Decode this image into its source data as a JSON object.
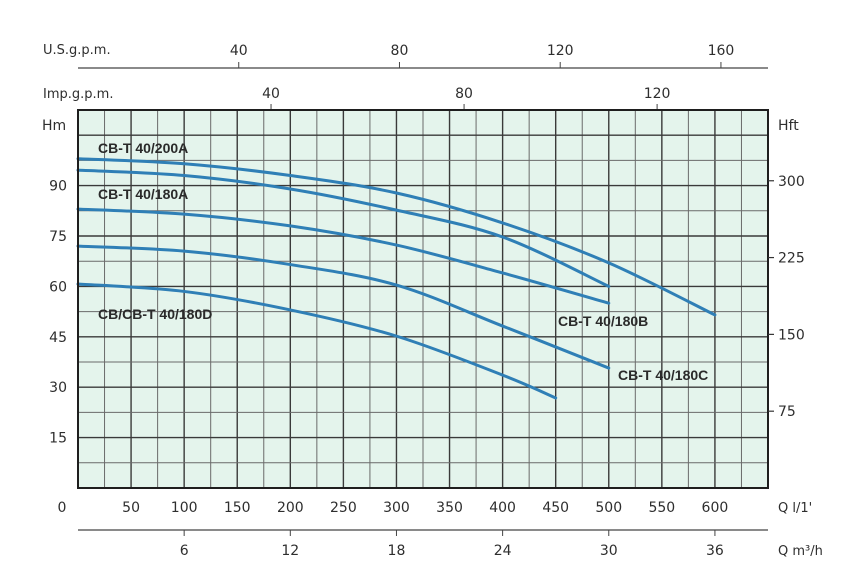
{
  "chart_data": {
    "type": "line",
    "title": "",
    "xlabel": "Q l/1'",
    "xlabel_secondary": "Q m³/h",
    "xlabel_top_1": "U.S.g.p.m.",
    "xlabel_top_2": "Imp.g.p.m.",
    "ylabel": "Hm",
    "ylabel_right": "Hft",
    "xlim": [
      0,
      650
    ],
    "ylim": [
      0,
      112.5
    ],
    "grid": true,
    "background": "#e4f4ec",
    "line_color": "#2f7fb6",
    "x_ticks": [
      0,
      50,
      100,
      150,
      200,
      250,
      300,
      350,
      400,
      450,
      500,
      550,
      600
    ],
    "x_tick_labels": [
      "0",
      "50",
      "100",
      "150",
      "200",
      "250",
      "300",
      "350",
      "400",
      "450",
      "500",
      "550",
      "600"
    ],
    "x2_ticks_m3h": [
      6,
      12,
      18,
      24,
      30,
      36
    ],
    "x_top_usgpm_ticks": [
      40,
      80,
      120,
      160
    ],
    "x_top_impgpm_ticks": [
      40,
      80,
      120
    ],
    "y_ticks": [
      15,
      30,
      45,
      60,
      75,
      90
    ],
    "y_right_ticks_ft": [
      75,
      150,
      225,
      300
    ],
    "series": [
      {
        "name": "CB-T 40/200A",
        "x": [
          0,
          100,
          200,
          300,
          400,
          500,
          600
        ],
        "values": [
          98,
          96.5,
          93,
          87.8,
          78.9,
          67,
          51.5
        ]
      },
      {
        "name": "CB-T 40/180A",
        "x": [
          0,
          100,
          200,
          300,
          400,
          500
        ],
        "values": [
          94.6,
          93,
          89,
          82.7,
          74.7,
          60
        ]
      },
      {
        "name": "CB-T 40/180B",
        "x": [
          0,
          100,
          200,
          300,
          400,
          500
        ],
        "values": [
          83,
          81.5,
          78,
          72.3,
          64,
          55
        ]
      },
      {
        "name": "CB-T 40/180C",
        "x": [
          0,
          100,
          200,
          300,
          400,
          500
        ],
        "values": [
          72,
          70.5,
          66.5,
          60.4,
          48.2,
          35.7
        ]
      },
      {
        "name": "CB/CB-T 40/180D",
        "x": [
          0,
          100,
          200,
          300,
          400,
          450
        ],
        "values": [
          60.7,
          58.5,
          53,
          45.2,
          33.6,
          26.8
        ]
      }
    ]
  },
  "labels": {
    "usgpm": "U.S.g.p.m.",
    "impgpm": "Imp.g.p.m.",
    "hm": "Hm",
    "hft": "Hft",
    "q_lmin": "Q l/1'",
    "q_m3h": "Q m³/h",
    "zero": "0"
  }
}
